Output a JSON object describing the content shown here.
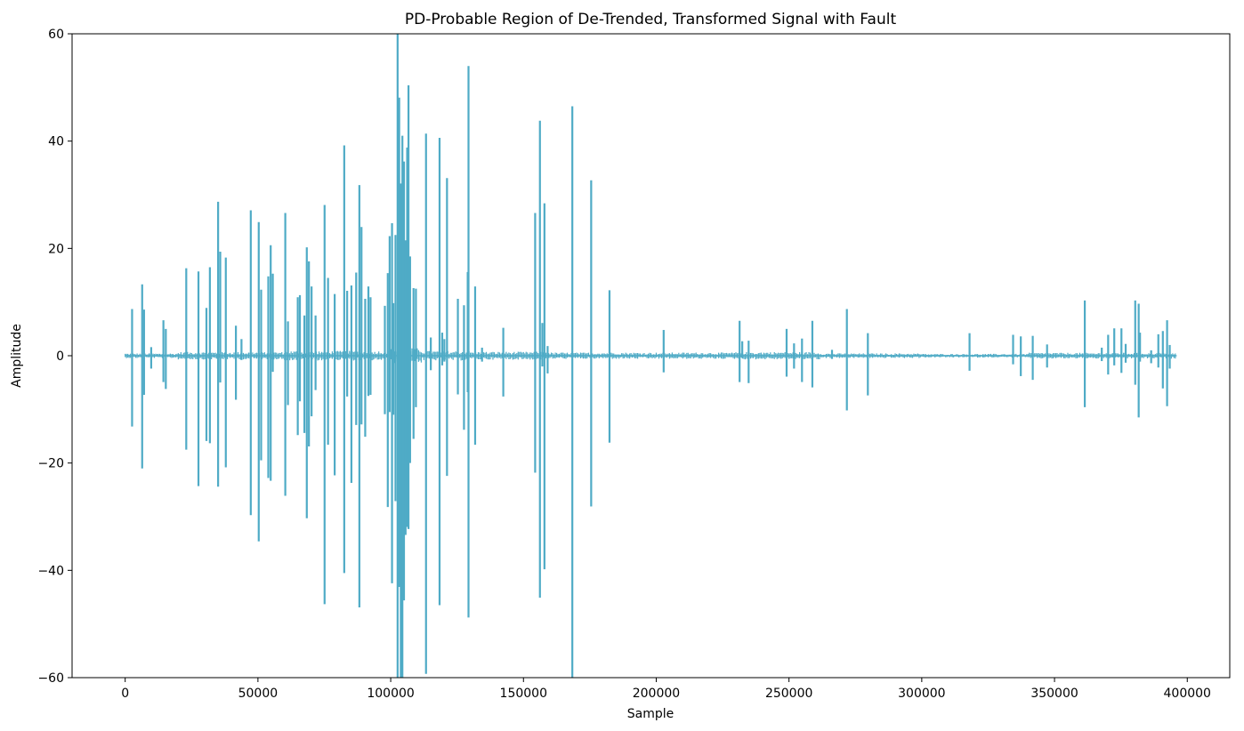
{
  "chart_data": {
    "type": "line",
    "title": "PD-Probable Region of De-Trended, Transformed Signal with Fault",
    "xlabel": "Sample",
    "ylabel": "Amplitude",
    "xlim": [
      -20000,
      416000
    ],
    "ylim": [
      -60,
      60
    ],
    "xticks": [
      0,
      50000,
      100000,
      150000,
      200000,
      250000,
      300000,
      350000,
      400000
    ],
    "xtick_labels": [
      "0",
      "50000",
      "100000",
      "150000",
      "200000",
      "250000",
      "300000",
      "350000",
      "400000"
    ],
    "yticks": [
      -60,
      -40,
      -20,
      0,
      20,
      40,
      60
    ],
    "ytick_labels": [
      "−60",
      "−40",
      "−20",
      "0",
      "20",
      "40",
      "60"
    ],
    "grid": false,
    "legend": "none",
    "color": "#4fabc6",
    "baseline_end": 396000,
    "series": [
      {
        "spikes": [
          [
            2600,
            8.7,
            -13.2
          ],
          [
            6400,
            13.3,
            -21
          ],
          [
            7100,
            8.6,
            -7.3
          ],
          [
            9800,
            1.6,
            -2.4
          ],
          [
            14400,
            6.6,
            -4.9
          ],
          [
            15300,
            5,
            -6.2
          ],
          [
            23000,
            16.3,
            -17.5
          ],
          [
            27600,
            15.7,
            -24.3
          ],
          [
            30600,
            8.9,
            -15.9
          ],
          [
            31900,
            16.5,
            -16.3
          ],
          [
            35000,
            28.7,
            -24.4
          ],
          [
            35800,
            19.4,
            -5
          ],
          [
            37900,
            18.3,
            -20.8
          ],
          [
            41700,
            5.6,
            -8.2
          ],
          [
            43800,
            3.1,
            -0.8
          ],
          [
            47300,
            27.1,
            -29.7
          ],
          [
            50300,
            24.9,
            -34.6
          ],
          [
            51200,
            12.3,
            -19.5
          ],
          [
            53900,
            14.8,
            -22.8
          ],
          [
            54800,
            20.6,
            -23.3
          ],
          [
            55600,
            15.3,
            -3
          ],
          [
            60300,
            26.6,
            -26.1
          ],
          [
            61300,
            6.4,
            -9.2
          ],
          [
            65000,
            10.9,
            -14.8
          ],
          [
            65800,
            11.3,
            -8.5
          ],
          [
            67500,
            7.5,
            -14.4
          ],
          [
            68400,
            20.2,
            -30.3
          ],
          [
            69200,
            17.6,
            -16.9
          ],
          [
            70200,
            12.9,
            -11.3
          ],
          [
            71700,
            7.5,
            -6.4
          ],
          [
            75100,
            28.1,
            -46.3
          ],
          [
            76400,
            14.5,
            -16.6
          ],
          [
            78900,
            11.5,
            -22.3
          ],
          [
            82500,
            39.2,
            -40.5
          ],
          [
            83600,
            12.1,
            -7.6
          ],
          [
            85200,
            13.1,
            -23.7
          ],
          [
            87000,
            15.5,
            -12.9
          ],
          [
            88200,
            31.8,
            -46.9
          ],
          [
            89000,
            24,
            -12.8
          ],
          [
            90400,
            10.6,
            -15.1
          ],
          [
            91600,
            12.9,
            -7.5
          ],
          [
            92400,
            10.9,
            -7.3
          ],
          [
            97800,
            9.3,
            -10.9
          ],
          [
            98900,
            15.4,
            -28.2
          ],
          [
            99600,
            22.3,
            -10.5
          ],
          [
            100500,
            24.7,
            -42.4
          ],
          [
            101000,
            9.8,
            -11
          ],
          [
            101800,
            22.5,
            -27.1
          ],
          [
            102600,
            62,
            -62
          ],
          [
            103200,
            48.1,
            -43.1
          ],
          [
            103800,
            32.1,
            -62
          ],
          [
            104400,
            41,
            -62
          ],
          [
            105000,
            36.2,
            -45.6
          ],
          [
            105600,
            21.5,
            -33.4
          ],
          [
            106200,
            38.8,
            -31.9
          ],
          [
            106700,
            50.4,
            -32.3
          ],
          [
            107300,
            18.5,
            -20
          ],
          [
            108600,
            12.6,
            -15.5
          ],
          [
            109500,
            12.5,
            -9.6
          ],
          [
            113300,
            41.4,
            -59.3
          ],
          [
            115100,
            3.4,
            -2.7
          ],
          [
            118400,
            40.6,
            -46.5
          ],
          [
            119400,
            4.3,
            -1.8
          ],
          [
            120200,
            3.1,
            -1.1
          ],
          [
            121200,
            33.1,
            -22.4
          ],
          [
            125300,
            10.6,
            -7.2
          ],
          [
            127600,
            9.4,
            -13.8
          ],
          [
            129300,
            54,
            -48.8
          ],
          [
            129000,
            15.6,
            -6.8
          ],
          [
            131800,
            12.9,
            -16.6
          ],
          [
            134400,
            1.5,
            -1.1
          ],
          [
            142400,
            5.2,
            -7.6
          ],
          [
            154400,
            26.6,
            -21.8
          ],
          [
            156200,
            43.8,
            -45.1
          ],
          [
            157100,
            6.1,
            -2
          ],
          [
            157900,
            28.4,
            -39.8
          ],
          [
            159100,
            1.8,
            -3.3
          ],
          [
            168400,
            46.5,
            -62
          ],
          [
            175500,
            32.7,
            -28.1
          ],
          [
            182400,
            12.2,
            -16.2
          ],
          [
            202800,
            4.8,
            -3.1
          ],
          [
            231400,
            6.5,
            -4.9
          ],
          [
            232400,
            2.7,
            -0.4
          ],
          [
            234800,
            2.8,
            -5.1
          ],
          [
            249100,
            5,
            -3.9
          ],
          [
            251900,
            2.3,
            -2.4
          ],
          [
            254900,
            3.2,
            -4.9
          ],
          [
            258800,
            6.5,
            -5.9
          ],
          [
            266200,
            1.1,
            -0.6
          ],
          [
            271800,
            8.7,
            -10.2
          ],
          [
            279700,
            4.2,
            -7.4
          ],
          [
            318000,
            4.2,
            -2.8
          ],
          [
            334400,
            3.9,
            -1.6
          ],
          [
            337300,
            3.6,
            -3.8
          ],
          [
            341800,
            3.7,
            -4.5
          ],
          [
            347200,
            2.1,
            -2.2
          ],
          [
            361400,
            10.3,
            -9.6
          ],
          [
            367800,
            1.5,
            -1
          ],
          [
            370200,
            3.9,
            -3.5
          ],
          [
            372500,
            5.1,
            -1.8
          ],
          [
            375200,
            5.1,
            -3.2
          ],
          [
            376800,
            2.2,
            -1.3
          ],
          [
            380400,
            10.3,
            -5.4
          ],
          [
            381700,
            9.7,
            -11.5
          ],
          [
            382200,
            4.3,
            -1.1
          ],
          [
            386400,
            1,
            -1.4
          ],
          [
            389100,
            4,
            -2.2
          ],
          [
            390800,
            4.6,
            -6.1
          ],
          [
            392400,
            6.6,
            -9.4
          ],
          [
            393400,
            2,
            -2.4
          ]
        ],
        "noise_segments": [
          [
            0,
            20000,
            0.45
          ],
          [
            20000,
            60000,
            0.7
          ],
          [
            60000,
            100000,
            0.9
          ],
          [
            100000,
            112000,
            1.4
          ],
          [
            112000,
            130000,
            0.9
          ],
          [
            130000,
            160000,
            0.75
          ],
          [
            160000,
            230000,
            0.6
          ],
          [
            230000,
            262000,
            0.7
          ],
          [
            262000,
            300000,
            0.45
          ],
          [
            300000,
            340000,
            0.35
          ],
          [
            340000,
            396000,
            0.55
          ]
        ]
      }
    ]
  }
}
